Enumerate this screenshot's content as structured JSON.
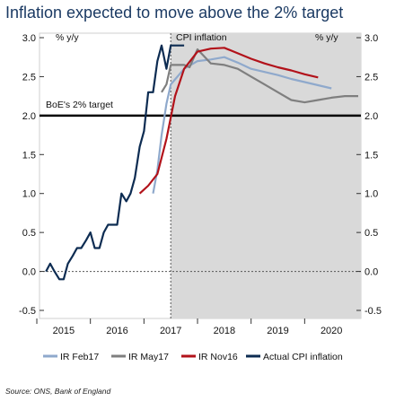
{
  "chart_data": {
    "type": "line",
    "title": "Inflation expected to move above the 2% target",
    "source": "Source: ONS, Bank of England",
    "left_unit": "% y/y",
    "right_unit": "% y/y",
    "shade_label": "CPI inflation",
    "target_label": "BoE's 2% target",
    "target_value": 2.0,
    "ylim": [
      -0.5,
      3.0
    ],
    "xlim": [
      2014.55,
      2020.55
    ],
    "y_ticks": [
      "3.0",
      "2.5",
      "2.0",
      "1.5",
      "1.0",
      "0.5",
      "0.0",
      "-0.5"
    ],
    "x_ticks": [
      "2015",
      "2016",
      "2017",
      "2018",
      "2019",
      "2020"
    ],
    "forecast_start": 2017.0,
    "series": [
      {
        "name": "IR Feb17",
        "color": "#8fa9cc",
        "x": [
          2016.67,
          2016.75,
          2016.83,
          2016.92,
          2017.0,
          2017.25,
          2017.5,
          2017.75,
          2018.0,
          2018.25,
          2018.5,
          2018.75,
          2019.0,
          2019.25,
          2019.5,
          2019.75,
          2020.0
        ],
        "y": [
          1.0,
          1.3,
          1.75,
          2.15,
          2.4,
          2.6,
          2.7,
          2.72,
          2.75,
          2.68,
          2.6,
          2.56,
          2.52,
          2.47,
          2.43,
          2.39,
          2.35
        ]
      },
      {
        "name": "IR May17",
        "color": "#7f7f7f",
        "x": [
          2016.83,
          2016.92,
          2017.0,
          2017.1,
          2017.25,
          2017.35,
          2017.5,
          2017.75,
          2018.0,
          2018.25,
          2018.5,
          2018.75,
          2019.0,
          2019.25,
          2019.5,
          2019.75,
          2020.0,
          2020.25,
          2020.5
        ],
        "y": [
          2.3,
          2.4,
          2.65,
          2.65,
          2.65,
          2.62,
          2.85,
          2.67,
          2.65,
          2.6,
          2.5,
          2.4,
          2.3,
          2.2,
          2.17,
          2.2,
          2.23,
          2.25,
          2.25
        ]
      },
      {
        "name": "IR Nov16",
        "color": "#b2121a",
        "x": [
          2016.42,
          2016.58,
          2016.75,
          2016.92,
          2017.08,
          2017.25,
          2017.5,
          2017.75,
          2018.0,
          2018.25,
          2018.5,
          2018.75,
          2019.0,
          2019.25,
          2019.5,
          2019.75
        ],
        "y": [
          1.0,
          1.1,
          1.25,
          1.7,
          2.25,
          2.6,
          2.82,
          2.86,
          2.87,
          2.8,
          2.73,
          2.67,
          2.62,
          2.58,
          2.53,
          2.49
        ]
      },
      {
        "name": "Actual CPI inflation",
        "color": "#0d2c52",
        "x": [
          2014.67,
          2014.75,
          2014.83,
          2014.92,
          2015.0,
          2015.08,
          2015.17,
          2015.25,
          2015.33,
          2015.42,
          2015.5,
          2015.58,
          2015.67,
          2015.75,
          2015.83,
          2015.92,
          2016.0,
          2016.08,
          2016.17,
          2016.25,
          2016.33,
          2016.42,
          2016.5,
          2016.58,
          2016.67,
          2016.75,
          2016.83,
          2016.92,
          2017.0,
          2017.08,
          2017.17,
          2017.25
        ],
        "y": [
          0.0,
          0.1,
          0.0,
          -0.1,
          -0.1,
          0.1,
          0.2,
          0.3,
          0.3,
          0.4,
          0.5,
          0.3,
          0.3,
          0.5,
          0.6,
          0.6,
          0.6,
          1.0,
          0.9,
          1.0,
          1.2,
          1.6,
          1.8,
          2.3,
          2.3,
          2.7,
          2.9,
          2.6,
          2.9,
          2.9,
          2.9,
          2.9
        ]
      }
    ]
  }
}
